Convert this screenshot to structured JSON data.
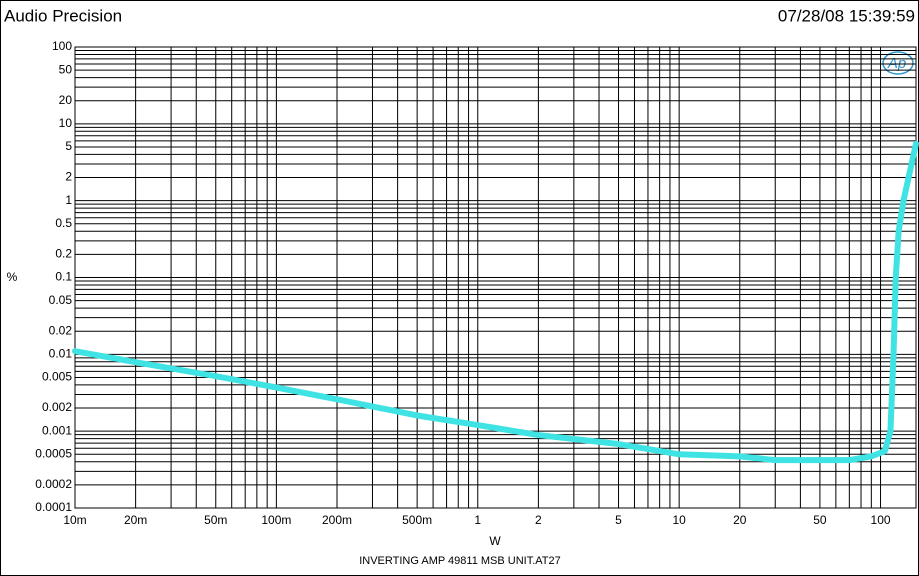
{
  "chart_data": {
    "type": "line",
    "header_left": "Audio Precision",
    "header_right": "07/28/08 15:39:59",
    "logo": "Ap",
    "ylabel": "%",
    "xlabel": "W",
    "footer": "INVERTING AMP 49811 MSB UNIT.AT27",
    "xscale": "log",
    "yscale": "log",
    "grid": true,
    "xlim": [
      0.01,
      150
    ],
    "ylim": [
      0.0001,
      100
    ],
    "xticks": [
      {
        "value": 0.01,
        "label": "10m"
      },
      {
        "value": 0.02,
        "label": "20m"
      },
      {
        "value": 0.05,
        "label": "50m"
      },
      {
        "value": 0.1,
        "label": "100m"
      },
      {
        "value": 0.2,
        "label": "200m"
      },
      {
        "value": 0.5,
        "label": "500m"
      },
      1,
      2,
      5,
      10,
      20,
      50,
      100
    ],
    "yticks": [
      100,
      50,
      20,
      10,
      5,
      2,
      1,
      0.5,
      0.2,
      0.1,
      0.05,
      0.02,
      0.01,
      0.005,
      0.002,
      0.001,
      0.0005,
      0.0002,
      0.0001
    ],
    "xgrid_minor": [
      0.03,
      0.04,
      0.06,
      0.07,
      0.08,
      0.09,
      0.3,
      0.4,
      0.6,
      0.7,
      0.8,
      0.9,
      3,
      4,
      6,
      7,
      8,
      9,
      30,
      40,
      60,
      70,
      80,
      90
    ],
    "ygrid_minor": [
      0.0003,
      0.0004,
      0.0006,
      0.0007,
      0.0008,
      0.0009,
      0.003,
      0.004,
      0.006,
      0.007,
      0.008,
      0.009,
      0.03,
      0.04,
      0.06,
      0.07,
      0.08,
      0.09,
      0.3,
      0.4,
      0.6,
      0.7,
      0.8,
      0.9,
      3,
      4,
      6,
      7,
      8,
      9,
      30,
      40,
      60,
      70,
      80,
      90
    ],
    "series": [
      {
        "color": "#3fe3e3",
        "x": [
          0.01,
          0.02,
          0.05,
          0.1,
          0.2,
          0.5,
          1,
          2,
          5,
          10,
          20,
          30,
          50,
          70,
          90,
          105,
          112,
          116,
          119,
          123,
          130,
          150
        ],
        "values": [
          0.011,
          0.0079,
          0.0052,
          0.0037,
          0.0026,
          0.0016,
          0.0012,
          0.00089,
          0.00068,
          0.0005,
          0.00047,
          0.00042,
          0.00042,
          0.00042,
          0.00047,
          0.00055,
          0.001,
          0.01,
          0.1,
          0.4,
          1,
          5.5
        ]
      }
    ]
  }
}
